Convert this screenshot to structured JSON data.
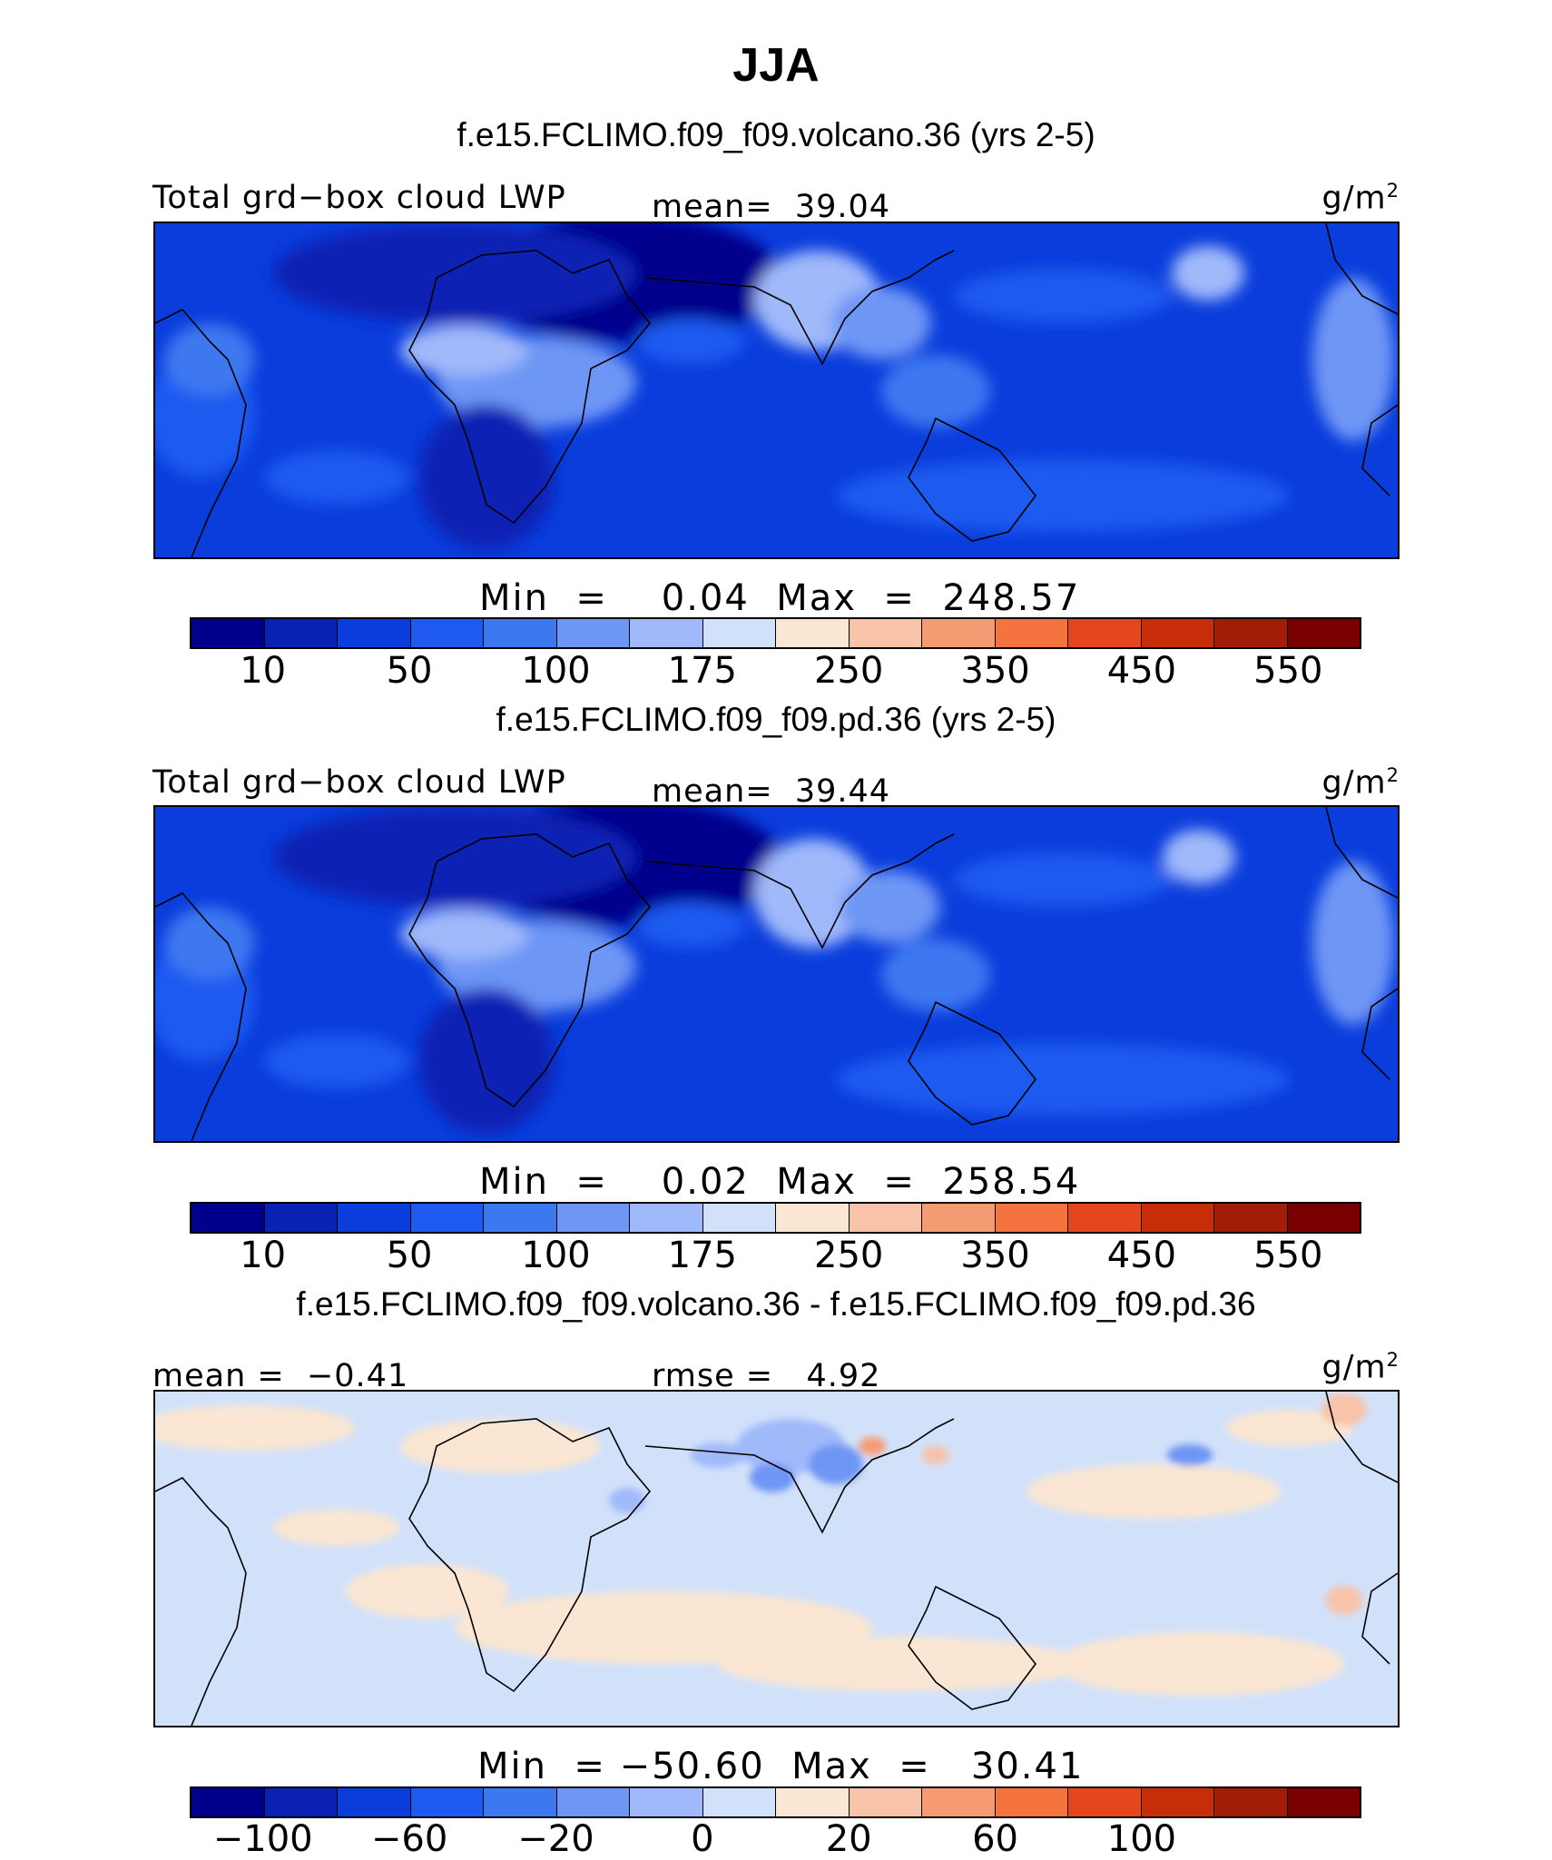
{
  "title": "JJA",
  "panels": [
    {
      "subtitle": "f.e15.FCLIMO.f09_f09.volcano.36 (yrs 2-5)",
      "left_label": "Total grd−box cloud LWP",
      "center_label": "mean=  39.04",
      "units": "g/m",
      "units_sup": "2",
      "minmax": "Min  =    0.04  Max  =  248.57",
      "colorbar_ticks": [
        "10",
        "50",
        "100",
        "175",
        "250",
        "350",
        "450",
        "550"
      ],
      "colorbar_colors": [
        "#00008c",
        "#0a22b4",
        "#0a3ddc",
        "#1e5af0",
        "#3c78f0",
        "#6e96f5",
        "#a0b9fa",
        "#d2e1fa",
        "#fae6d2",
        "#f8c3a8",
        "#f59b73",
        "#f5733f",
        "#e6461e",
        "#c82d0a",
        "#a01e08",
        "#780000"
      ]
    },
    {
      "subtitle": "f.e15.FCLIMO.f09_f09.pd.36 (yrs 2-5)",
      "left_label": "Total grd−box cloud LWP",
      "center_label": "mean=  39.44",
      "units": "g/m",
      "units_sup": "2",
      "minmax": "Min  =    0.02  Max  =  258.54",
      "colorbar_ticks": [
        "10",
        "50",
        "100",
        "175",
        "250",
        "350",
        "450",
        "550"
      ],
      "colorbar_colors": [
        "#00008c",
        "#0a22b4",
        "#0a3ddc",
        "#1e5af0",
        "#3c78f0",
        "#6e96f5",
        "#a0b9fa",
        "#d2e1fa",
        "#fae6d2",
        "#f8c3a8",
        "#f59b73",
        "#f5733f",
        "#e6461e",
        "#c82d0a",
        "#a01e08",
        "#780000"
      ]
    },
    {
      "subtitle": "f.e15.FCLIMO.f09_f09.volcano.36 - f.e15.FCLIMO.f09_f09.pd.36",
      "left_label": "mean =  −0.41",
      "center_label": "rmse =   4.92",
      "units": "g/m",
      "units_sup": "2",
      "minmax": "Min  = −50.60  Max  =   30.41",
      "colorbar_ticks": [
        "−100",
        "−60",
        "−20",
        "0",
        "20",
        "60",
        "100"
      ],
      "colorbar_colors": [
        "#00008c",
        "#0a22b4",
        "#0a3ddc",
        "#1e5af0",
        "#3c78f0",
        "#6e96f5",
        "#a0b9fa",
        "#d2e1fa",
        "#fae6d2",
        "#f8c3a8",
        "#f59b73",
        "#f5733f",
        "#e6461e",
        "#c82d0a",
        "#a01e08",
        "#780000"
      ]
    }
  ],
  "chart_data": [
    {
      "type": "heatmap",
      "title": "f.e15.FCLIMO.f09_f09.volcano.36 (yrs 2-5)",
      "variable": "Total grd−box cloud LWP",
      "units": "g/m2",
      "mean": 39.04,
      "min": 0.04,
      "max": 248.57,
      "contour_levels": [
        10,
        25,
        50,
        75,
        100,
        125,
        150,
        175,
        200,
        250,
        300,
        350,
        400,
        450,
        500,
        550
      ]
    },
    {
      "type": "heatmap",
      "title": "f.e15.FCLIMO.f09_f09.pd.36 (yrs 2-5)",
      "variable": "Total grd−box cloud LWP",
      "units": "g/m2",
      "mean": 39.44,
      "min": 0.02,
      "max": 258.54,
      "contour_levels": [
        10,
        25,
        50,
        75,
        100,
        125,
        150,
        175,
        200,
        250,
        300,
        350,
        400,
        450,
        500,
        550
      ]
    },
    {
      "type": "heatmap",
      "title": "f.e15.FCLIMO.f09_f09.volcano.36 - f.e15.FCLIMO.f09_f09.pd.36",
      "units": "g/m2",
      "mean": -0.41,
      "rmse": 4.92,
      "min": -50.6,
      "max": 30.41,
      "contour_levels": [
        -100,
        -80,
        -60,
        -40,
        -20,
        -10,
        0,
        10,
        20,
        40,
        60,
        80,
        100
      ]
    }
  ]
}
